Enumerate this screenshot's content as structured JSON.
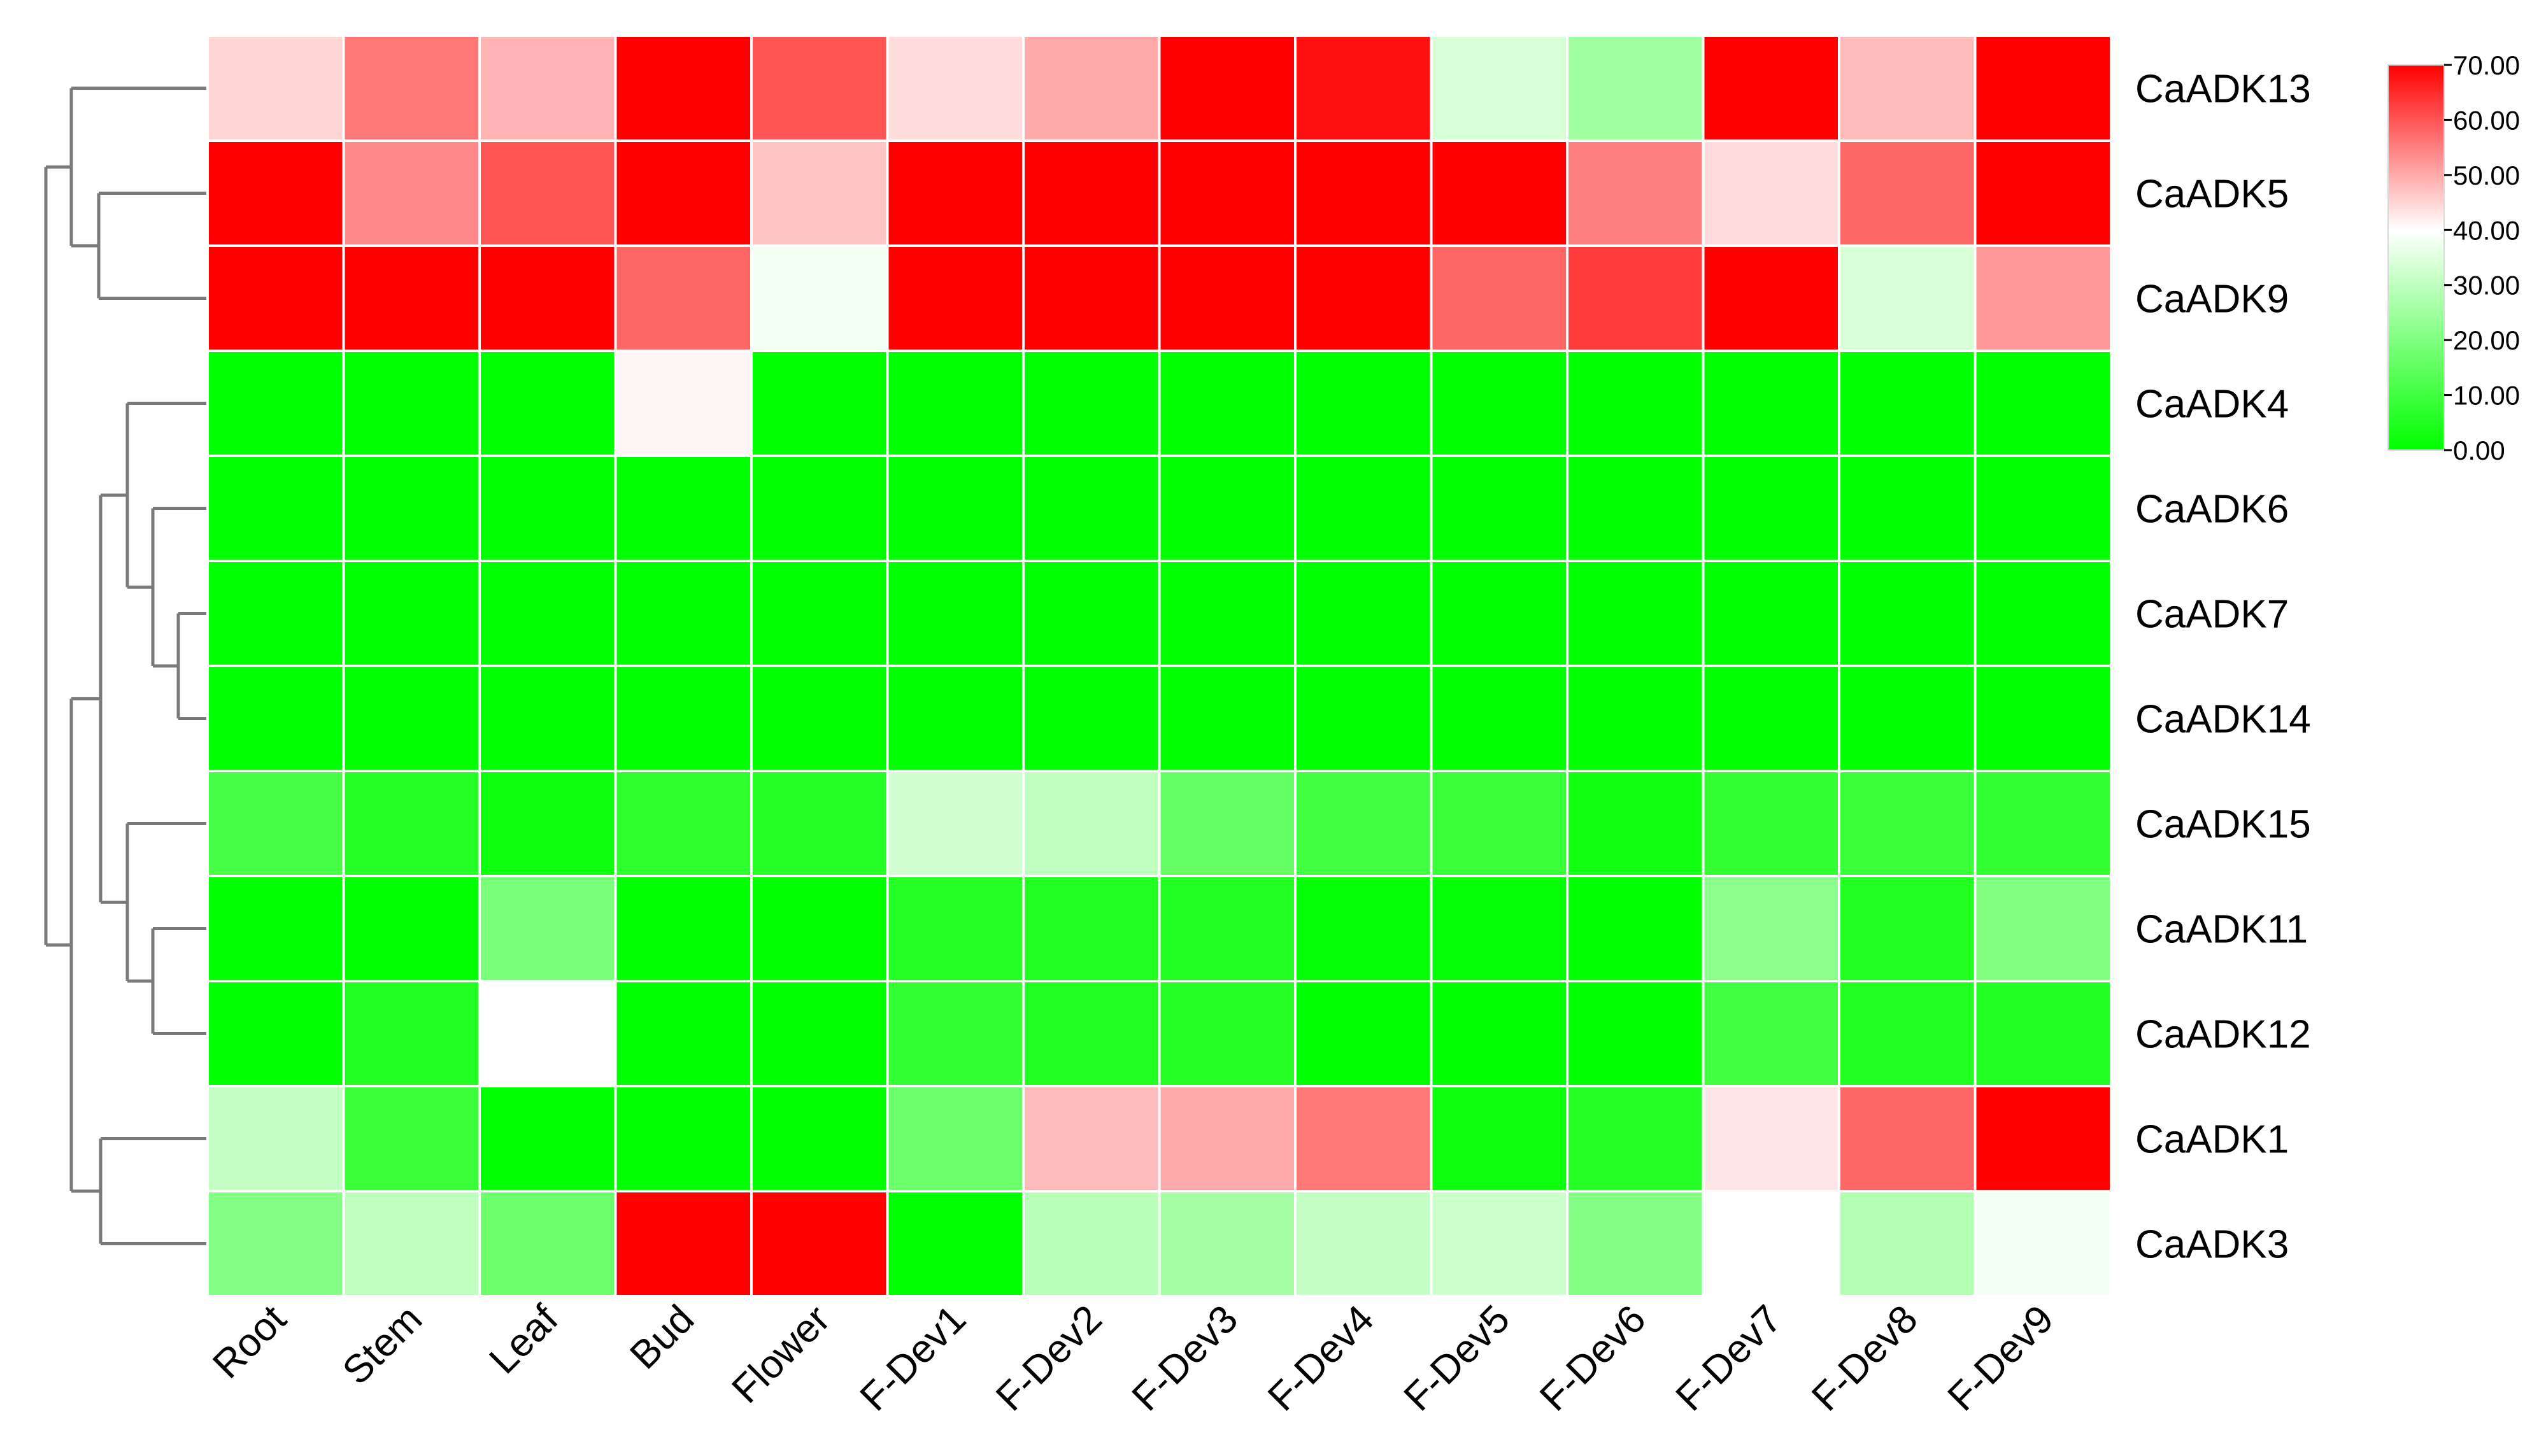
{
  "chart_data": {
    "type": "heatmap",
    "title": "",
    "xlabel": "",
    "ylabel": "",
    "columns": [
      "Root",
      "Stem",
      "Leaf",
      "Bud",
      "Flower",
      "F-Dev1",
      "F-Dev2",
      "F-Dev3",
      "F-Dev4",
      "F-Dev5",
      "F-Dev6",
      "F-Dev7",
      "F-Dev8",
      "F-Dev9"
    ],
    "rows": [
      "CaADK13",
      "CaADK5",
      "CaADK9",
      "CaADK4",
      "CaADK6",
      "CaADK7",
      "CaADK14",
      "CaADK15",
      "CaADK11",
      "CaADK12",
      "CaADK1",
      "CaADK3"
    ],
    "values": [
      [
        45,
        56,
        49,
        75,
        60,
        44,
        50,
        72,
        68,
        34,
        25,
        74,
        48,
        73
      ],
      [
        70,
        54,
        60,
        72,
        47,
        70,
        70,
        70,
        70,
        70,
        55,
        44,
        58,
        70
      ],
      [
        70,
        70,
        70,
        58,
        38,
        70,
        70,
        70,
        70,
        58,
        63,
        70,
        34,
        52
      ],
      [
        0,
        0,
        0,
        41,
        0,
        0,
        0,
        0,
        0,
        0,
        0,
        0,
        0,
        0
      ],
      [
        0,
        0,
        0,
        0,
        0,
        0,
        0,
        0,
        0,
        0,
        0,
        0,
        0,
        0
      ],
      [
        0,
        0,
        0,
        0,
        0,
        0,
        0,
        0,
        0,
        0,
        0,
        0,
        0,
        0
      ],
      [
        0,
        0,
        0,
        0,
        0,
        0,
        0,
        0,
        0,
        0,
        0,
        0,
        0,
        0
      ],
      [
        11,
        6,
        2,
        7,
        6,
        33,
        30,
        16,
        10,
        9,
        3,
        8,
        9,
        8
      ],
      [
        0,
        0,
        19,
        0,
        0,
        6,
        5,
        5,
        1,
        1,
        0,
        22,
        5,
        20
      ],
      [
        0,
        5,
        40,
        0,
        0,
        8,
        5,
        6,
        0,
        0,
        0,
        10,
        5,
        5
      ],
      [
        31,
        9,
        0,
        0,
        0,
        17,
        48,
        50,
        56,
        2,
        6,
        43,
        58,
        70
      ],
      [
        21,
        30,
        17,
        70,
        70,
        0,
        29,
        26,
        31,
        32,
        21,
        40,
        28,
        38
      ]
    ],
    "colorbar": {
      "min": 0,
      "max": 70,
      "ticks": [
        "70.00",
        "60.00",
        "50.00",
        "40.00",
        "30.00",
        "20.00",
        "10.00",
        "0.00"
      ],
      "colors": {
        "low": "#00ff00",
        "mid": "#ffffff",
        "high": "#ff0000"
      },
      "mid_value": 40
    },
    "legend_position": "top-right",
    "dendrogram": "rows"
  }
}
